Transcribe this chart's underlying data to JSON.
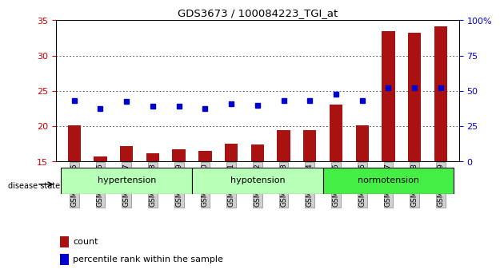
{
  "title": "GDS3673 / 100084223_TGI_at",
  "samples": [
    "GSM493525",
    "GSM493526",
    "GSM493527",
    "GSM493528",
    "GSM493529",
    "GSM493530",
    "GSM493531",
    "GSM493532",
    "GSM493533",
    "GSM493534",
    "GSM493535",
    "GSM493536",
    "GSM493537",
    "GSM493538",
    "GSM493539"
  ],
  "counts": [
    20.1,
    15.7,
    17.2,
    16.2,
    16.8,
    16.5,
    17.5,
    17.4,
    19.5,
    19.5,
    23.1,
    20.1,
    33.5,
    33.2,
    34.2
  ],
  "percentiles": [
    43.0,
    37.5,
    42.5,
    39.0,
    39.0,
    37.5,
    41.0,
    40.0,
    43.0,
    43.0,
    48.0,
    43.0,
    52.5,
    52.5,
    52.5
  ],
  "count_ylim": [
    15,
    35
  ],
  "count_yticks": [
    15,
    20,
    25,
    30,
    35
  ],
  "pct_ylim": [
    0,
    100
  ],
  "pct_yticks": [
    0,
    25,
    50,
    75,
    100
  ],
  "bar_color": "#aa1111",
  "dot_color": "#0000cc",
  "grid_color": "#000000",
  "background_color": "#ffffff",
  "label_color_count": "#cc0000",
  "label_color_pct": "#0000cc",
  "disease_state_label": "disease state",
  "legend_count": "count",
  "legend_pct": "percentile rank within the sample",
  "group_names": [
    "hypertension",
    "hypotension",
    "normotension"
  ],
  "group_starts": [
    0,
    5,
    10
  ],
  "group_ends": [
    4,
    9,
    14
  ],
  "group_colors": [
    "#b8ffb8",
    "#b8ffb8",
    "#44ee44"
  ]
}
